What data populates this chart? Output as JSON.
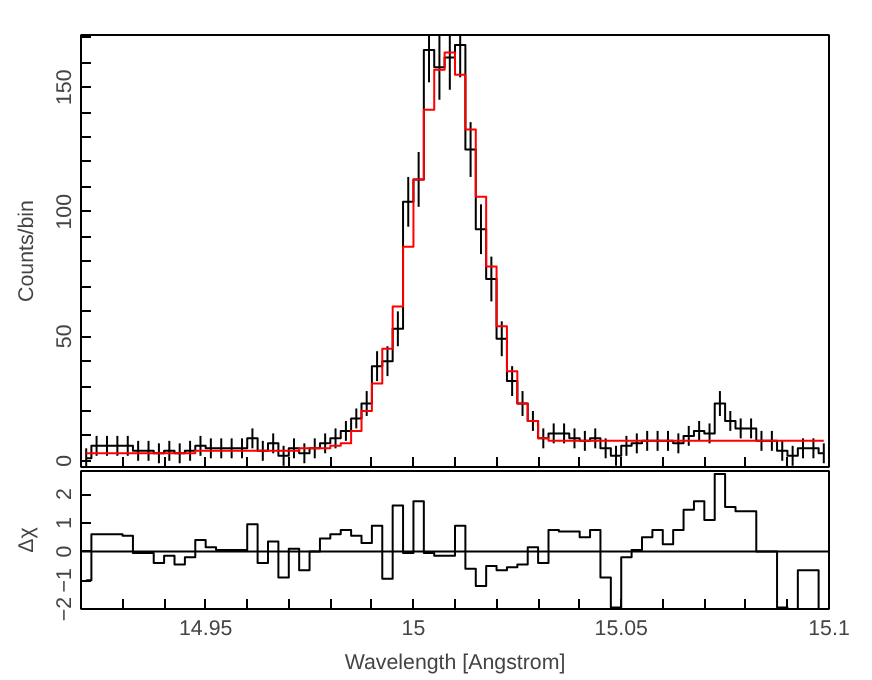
{
  "chart_data": [
    {
      "type": "step",
      "ylabel": "Counts/bin",
      "tick_labels": "y",
      "x": [
        14.92125,
        14.92375,
        14.92625,
        14.92875,
        14.93125,
        14.93375,
        14.93625,
        14.93875,
        14.94125,
        14.94375,
        14.94625,
        14.94875,
        14.95125,
        14.95375,
        14.95625,
        14.95875,
        14.96125,
        14.96375,
        14.96625,
        14.96875,
        14.97125,
        14.97375,
        14.97625,
        14.97875,
        14.98125,
        14.98375,
        14.98625,
        14.98875,
        14.99125,
        14.99375,
        14.99625,
        14.99875,
        15.00125,
        15.00375,
        15.00625,
        15.00875,
        15.01125,
        15.01375,
        15.01625,
        15.01875,
        15.02125,
        15.02375,
        15.02625,
        15.02875,
        15.03125,
        15.03375,
        15.03625,
        15.03875,
        15.04125,
        15.04375,
        15.04625,
        15.04875,
        15.05125,
        15.05375,
        15.05625,
        15.05875,
        15.06125,
        15.06375,
        15.06625,
        15.06875,
        15.07125,
        15.07375,
        15.07625,
        15.07875,
        15.08125,
        15.08375,
        15.08625,
        15.08875,
        15.09125,
        15.09375,
        15.09625,
        15.09875
      ],
      "series": [
        {
          "color": "#000000",
          "values": [
            1,
            6,
            6,
            6,
            6,
            4,
            4,
            3,
            4,
            3,
            4,
            6,
            5,
            5,
            5,
            5,
            9,
            4,
            7,
            2,
            5,
            3,
            5,
            7,
            9,
            12,
            17,
            23,
            38,
            40,
            53,
            104,
            113,
            165,
            158,
            162,
            167,
            125,
            93,
            73,
            49,
            32,
            23,
            16,
            9,
            11,
            11,
            9,
            8,
            9,
            5,
            2,
            6,
            7,
            8,
            8,
            8,
            7,
            10,
            12,
            11,
            23,
            16,
            13,
            13,
            8,
            8,
            4,
            2,
            5,
            5,
            3
          ],
          "errors": [
            4,
            4,
            4,
            4,
            4,
            4,
            4,
            4,
            4,
            4,
            4,
            4,
            4,
            4,
            4,
            4,
            4,
            4,
            4,
            4,
            4,
            4,
            4,
            4,
            4,
            4,
            4,
            5,
            6,
            6,
            7,
            10,
            11,
            13,
            13,
            13,
            13,
            11,
            10,
            9,
            7,
            6,
            5,
            4,
            4,
            4,
            4,
            4,
            4,
            4,
            4,
            4,
            4,
            4,
            4,
            4,
            4,
            4,
            4,
            4,
            4,
            5,
            4,
            4,
            4,
            4,
            4,
            4,
            4,
            4,
            4,
            4
          ]
        },
        {
          "color": "#ff0000",
          "values": [
            3,
            3,
            3,
            3,
            3,
            3,
            3,
            3,
            3,
            3,
            3,
            4,
            4,
            4,
            4,
            4,
            4,
            4,
            4,
            4,
            4,
            5,
            5,
            5,
            6,
            7,
            12,
            20,
            31,
            45,
            62,
            86,
            113,
            141,
            157,
            164,
            155,
            133,
            106,
            78,
            54,
            36,
            23,
            16,
            9,
            8,
            8,
            8,
            8,
            8,
            8,
            8,
            8,
            8,
            8,
            8,
            8,
            8,
            8,
            8,
            8,
            8,
            8,
            8,
            8,
            8,
            8,
            8,
            8,
            8,
            8,
            8
          ]
        }
      ],
      "xlim": [
        14.92,
        15.1
      ],
      "xticks": [
        {
          "value": 14.93,
          "label": null
        },
        {
          "value": 14.94,
          "label": null
        },
        {
          "value": 14.95,
          "label": null
        },
        {
          "value": 14.96,
          "label": null
        },
        {
          "value": 14.97,
          "label": null
        },
        {
          "value": 14.98,
          "label": null
        },
        {
          "value": 14.99,
          "label": null
        },
        {
          "value": 15,
          "label": null
        },
        {
          "value": 15.01,
          "label": null
        },
        {
          "value": 15.02,
          "label": null
        },
        {
          "value": 15.03,
          "label": null
        },
        {
          "value": 15.04,
          "label": null
        },
        {
          "value": 15.05,
          "label": null
        },
        {
          "value": 15.06,
          "label": null
        },
        {
          "value": 15.07,
          "label": null
        },
        {
          "value": 15.08,
          "label": null
        },
        {
          "value": 15.09,
          "label": null
        }
      ],
      "ylim": [
        -2.5,
        171
      ],
      "yticks": [
        0,
        {
          "value": 10,
          "label": null
        },
        {
          "value": 20,
          "label": null
        },
        {
          "value": 30,
          "label": null
        },
        {
          "value": 40,
          "label": null
        },
        50,
        {
          "value": 60,
          "label": null
        },
        {
          "value": 70,
          "label": null
        },
        {
          "value": 80,
          "label": null
        },
        {
          "value": 90,
          "label": null
        },
        100,
        {
          "value": 110,
          "label": null
        },
        {
          "value": 120,
          "label": null
        },
        {
          "value": 130,
          "label": null
        },
        {
          "value": 140,
          "label": null
        },
        150,
        {
          "value": 160,
          "label": null
        },
        {
          "value": 170,
          "label": null
        }
      ]
    },
    {
      "type": "step",
      "ylabel": "Δχ",
      "xlabel": "Wavelength [Angstrom]",
      "x": [
        14.92125,
        14.92375,
        14.92625,
        14.92875,
        14.93125,
        14.93375,
        14.93625,
        14.93875,
        14.94125,
        14.94375,
        14.94625,
        14.94875,
        14.95125,
        14.95375,
        14.95625,
        14.95875,
        14.96125,
        14.96375,
        14.96625,
        14.96875,
        14.97125,
        14.97375,
        14.97625,
        14.97875,
        14.98125,
        14.98375,
        14.98625,
        14.98875,
        14.99125,
        14.99375,
        14.99625,
        14.99875,
        15.00125,
        15.00375,
        15.00625,
        15.00875,
        15.01125,
        15.01375,
        15.01625,
        15.01875,
        15.02125,
        15.02375,
        15.02625,
        15.02875,
        15.03125,
        15.03375,
        15.03625,
        15.03875,
        15.04125,
        15.04375,
        15.04625,
        15.04875,
        15.05125,
        15.05375,
        15.05625,
        15.05875,
        15.06125,
        15.06375,
        15.06625,
        15.06875,
        15.07125,
        15.07375,
        15.07625,
        15.07875,
        15.08125,
        15.08375,
        15.08625,
        15.08875,
        15.09125,
        15.09375,
        15.09625,
        15.09875
      ],
      "series": [
        {
          "color": "#000000",
          "values": [
            -1,
            0.6,
            0.6,
            0.6,
            0.55,
            -0.05,
            -0.05,
            -0.4,
            -0.15,
            -0.45,
            -0.2,
            0.4,
            0.15,
            0.05,
            0.05,
            0.05,
            0.95,
            -0.4,
            0.35,
            -0.9,
            0.1,
            -0.65,
            0,
            0.45,
            0.6,
            0.75,
            0.55,
            0.3,
            0.9,
            -0.95,
            1.6,
            -0.05,
            1.75,
            -0.05,
            -0.15,
            -0.15,
            0.9,
            -0.6,
            -1.2,
            -0.5,
            -0.65,
            -0.55,
            -0.45,
            0.15,
            -0.4,
            0.75,
            0.7,
            0.7,
            0.5,
            0.75,
            -0.9,
            -1.95,
            -0.2,
            0.05,
            0.5,
            0.75,
            0.25,
            0.75,
            1.45,
            1.75,
            1.1,
            2.7,
            1.55,
            1.4,
            1.4,
            0,
            0,
            -1.95,
            -2,
            -0.65,
            -0.65,
            -2
          ]
        }
      ],
      "ref_lines": [
        {
          "axis": "y",
          "value": 0,
          "color": "#000000"
        }
      ],
      "xlim": [
        14.92,
        15.1
      ],
      "xticks": [
        {
          "value": 14.93,
          "label": null
        },
        {
          "value": 14.94,
          "label": null
        },
        14.95,
        {
          "value": 14.96,
          "label": null
        },
        {
          "value": 14.97,
          "label": null
        },
        {
          "value": 14.98,
          "label": null
        },
        {
          "value": 14.99,
          "label": null
        },
        15,
        {
          "value": 15.01,
          "label": null
        },
        {
          "value": 15.02,
          "label": null
        },
        {
          "value": 15.03,
          "label": null
        },
        {
          "value": 15.04,
          "label": null
        },
        15.05,
        {
          "value": 15.06,
          "label": null
        },
        {
          "value": 15.07,
          "label": null
        },
        {
          "value": 15.08,
          "label": null
        },
        {
          "value": 15.09,
          "label": null
        },
        15.1
      ],
      "ylim": [
        -2,
        2.8
      ],
      "yticks": [
        -2,
        -1,
        0,
        1,
        2
      ]
    }
  ]
}
